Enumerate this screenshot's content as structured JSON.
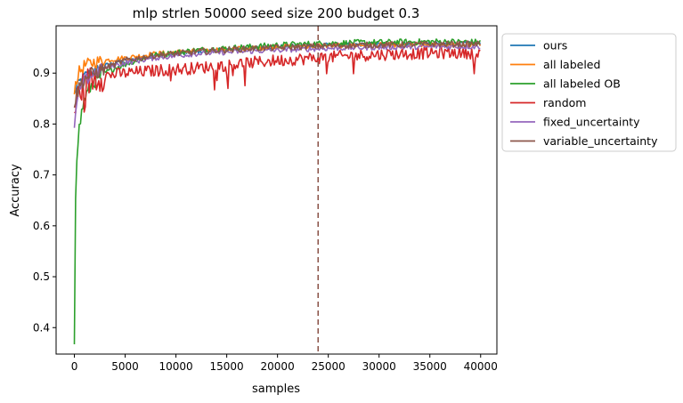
{
  "chart_data": {
    "type": "line",
    "title": "mlp strlen 50000 seed size 200 budget 0.3",
    "xlabel": "samples",
    "ylabel": "Accuracy",
    "xlim": [
      -1800,
      41600
    ],
    "ylim": [
      0.348,
      0.993
    ],
    "xticks": [
      0,
      5000,
      10000,
      15000,
      20000,
      25000,
      30000,
      35000,
      40000
    ],
    "yticks": [
      0.4,
      0.5,
      0.6,
      0.7,
      0.8,
      0.9
    ],
    "vline": {
      "x": 24000,
      "color": "#8c564b",
      "style": "dashed"
    },
    "legend_position": "outside-top-right",
    "series": [
      {
        "name": "ours",
        "color": "#1f77b4",
        "points": [
          [
            0,
            0.86
          ],
          [
            400,
            0.88
          ],
          [
            1000,
            0.895
          ],
          [
            2000,
            0.905
          ],
          [
            3000,
            0.915
          ],
          [
            5000,
            0.925
          ],
          [
            8000,
            0.935
          ],
          [
            12000,
            0.942
          ],
          [
            16000,
            0.948
          ],
          [
            20000,
            0.952
          ],
          [
            24000,
            0.955
          ],
          [
            28000,
            0.956
          ],
          [
            32000,
            0.957
          ],
          [
            36000,
            0.958
          ],
          [
            40000,
            0.958
          ]
        ]
      },
      {
        "name": "all labeled",
        "color": "#ff7f0e",
        "points": [
          [
            0,
            0.87
          ],
          [
            400,
            0.9
          ],
          [
            1000,
            0.915
          ],
          [
            2000,
            0.922
          ],
          [
            3000,
            0.925
          ],
          [
            5000,
            0.93
          ],
          [
            8000,
            0.938
          ],
          [
            12000,
            0.944
          ],
          [
            16000,
            0.948
          ],
          [
            20000,
            0.952
          ],
          [
            24000,
            0.954
          ],
          [
            28000,
            0.955
          ],
          [
            32000,
            0.955
          ],
          [
            36000,
            0.956
          ],
          [
            40000,
            0.955
          ]
        ]
      },
      {
        "name": "all labeled OB",
        "color": "#2ca02c",
        "points": [
          [
            0,
            0.375
          ],
          [
            100,
            0.65
          ],
          [
            200,
            0.73
          ],
          [
            400,
            0.78
          ],
          [
            700,
            0.82
          ],
          [
            1000,
            0.85
          ],
          [
            1500,
            0.87
          ],
          [
            2000,
            0.885
          ],
          [
            3000,
            0.9
          ],
          [
            4000,
            0.91
          ],
          [
            6000,
            0.925
          ],
          [
            8000,
            0.935
          ],
          [
            12000,
            0.945
          ],
          [
            16000,
            0.95
          ],
          [
            20000,
            0.955
          ],
          [
            24000,
            0.958
          ],
          [
            28000,
            0.96
          ],
          [
            32000,
            0.961
          ],
          [
            36000,
            0.962
          ],
          [
            40000,
            0.961
          ]
        ]
      },
      {
        "name": "random",
        "color": "#d62728",
        "points": [
          [
            0,
            0.82
          ],
          [
            400,
            0.86
          ],
          [
            1000,
            0.88
          ],
          [
            2000,
            0.89
          ],
          [
            3000,
            0.895
          ],
          [
            5000,
            0.9
          ],
          [
            8000,
            0.905
          ],
          [
            12000,
            0.91
          ],
          [
            16000,
            0.918
          ],
          [
            20000,
            0.925
          ],
          [
            24000,
            0.93
          ],
          [
            28000,
            0.935
          ],
          [
            32000,
            0.938
          ],
          [
            36000,
            0.94
          ],
          [
            40000,
            0.94
          ]
        ]
      },
      {
        "name": "fixed_uncertainty",
        "color": "#9467bd",
        "points": [
          [
            0,
            0.8
          ],
          [
            400,
            0.86
          ],
          [
            1000,
            0.885
          ],
          [
            2000,
            0.9
          ],
          [
            3000,
            0.91
          ],
          [
            5000,
            0.92
          ],
          [
            8000,
            0.93
          ],
          [
            12000,
            0.938
          ],
          [
            16000,
            0.942
          ],
          [
            20000,
            0.945
          ],
          [
            24000,
            0.948
          ],
          [
            28000,
            0.95
          ],
          [
            32000,
            0.951
          ],
          [
            36000,
            0.952
          ],
          [
            40000,
            0.952
          ]
        ]
      },
      {
        "name": "variable_uncertainty",
        "color": "#8c564b",
        "points": [
          [
            0,
            0.84
          ],
          [
            400,
            0.87
          ],
          [
            1000,
            0.89
          ],
          [
            2000,
            0.9
          ],
          [
            3000,
            0.91
          ],
          [
            5000,
            0.925
          ],
          [
            8000,
            0.935
          ],
          [
            12000,
            0.942
          ],
          [
            16000,
            0.947
          ],
          [
            20000,
            0.95
          ],
          [
            24000,
            0.953
          ],
          [
            28000,
            0.955
          ],
          [
            32000,
            0.956
          ],
          [
            36000,
            0.957
          ],
          [
            40000,
            0.957
          ]
        ]
      }
    ]
  }
}
